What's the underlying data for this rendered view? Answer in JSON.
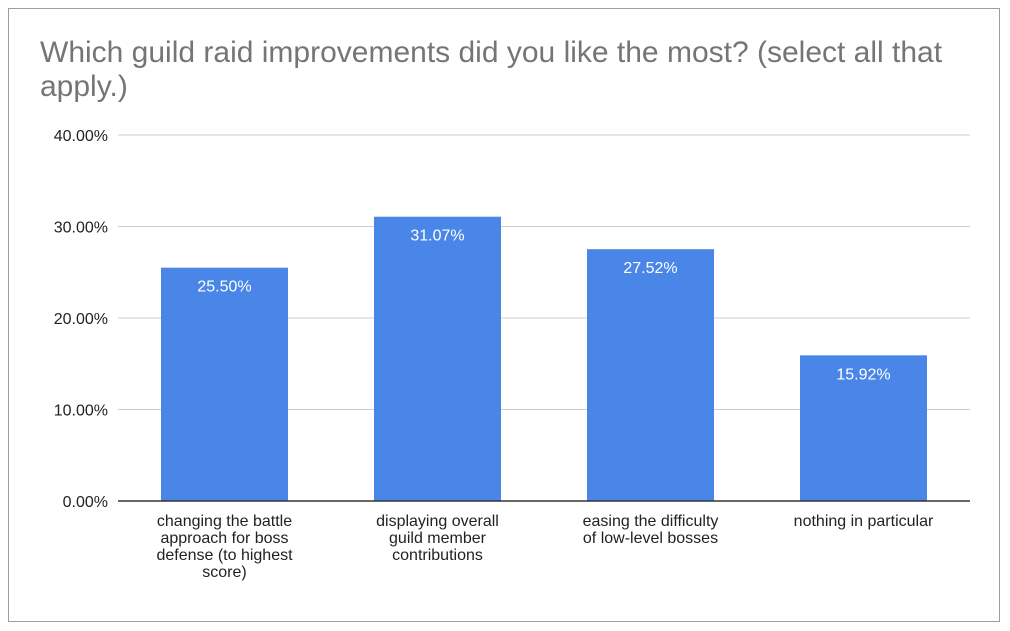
{
  "chart_data": {
    "type": "bar",
    "title": "Which guild raid improvements did you like the most? (select all that apply.)",
    "xlabel": "",
    "ylabel": "",
    "categories": [
      "changing the battle approach for boss defense (to highest score)",
      "displaying overall guild member contributions",
      "easing the difficulty of low-level bosses",
      "nothing in particular"
    ],
    "category_label_lines": [
      [
        "changing the battle",
        "approach for boss",
        "defense (to highest",
        "score)"
      ],
      [
        "displaying overall",
        "guild member",
        "contributions"
      ],
      [
        "easing the difficulty",
        "of low-level bosses"
      ],
      [
        "nothing in particular"
      ]
    ],
    "values": [
      25.5,
      31.07,
      27.52,
      15.92
    ],
    "data_labels": [
      "25.50%",
      "31.07%",
      "27.52%",
      "15.92%"
    ],
    "ylim": [
      0,
      40
    ],
    "yticks": [
      {
        "value": 0,
        "label": "0.00%"
      },
      {
        "value": 10,
        "label": "10.00%"
      },
      {
        "value": 20,
        "label": "20.00%"
      },
      {
        "value": 30,
        "label": "30.00%"
      },
      {
        "value": 40,
        "label": "40.00%"
      }
    ],
    "grid": true,
    "legend": "none",
    "colors": {
      "bar": "#4a86e8",
      "grid": "#cccccc",
      "axis": "#333333",
      "data_label": "#ffffff",
      "title": "#757575"
    }
  }
}
